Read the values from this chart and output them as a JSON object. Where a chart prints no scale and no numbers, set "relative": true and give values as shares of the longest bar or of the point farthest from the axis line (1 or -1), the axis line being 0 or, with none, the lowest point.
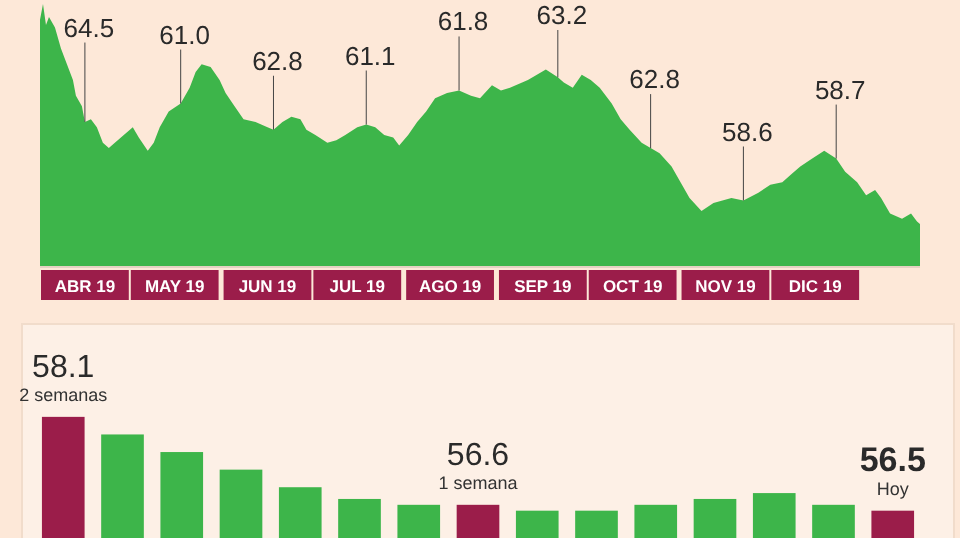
{
  "chart_data": [
    {
      "type": "area",
      "relative": true,
      "color": "#3db54a",
      "x": [
        "2019-04-01",
        "2019-04-02",
        "2019-04-03",
        "2019-04-04",
        "2019-04-06",
        "2019-04-08",
        "2019-04-10",
        "2019-04-12",
        "2019-04-13",
        "2019-04-15",
        "2019-04-16",
        "2019-04-18",
        "2019-04-20",
        "2019-04-22",
        "2019-04-24",
        "2019-04-26",
        "2019-04-29",
        "2019-05-02",
        "2019-05-04",
        "2019-05-07",
        "2019-05-09",
        "2019-05-11",
        "2019-05-14",
        "2019-05-18",
        "2019-05-21",
        "2019-05-23",
        "2019-05-25",
        "2019-05-28",
        "2019-05-31",
        "2019-06-02",
        "2019-06-05",
        "2019-06-08",
        "2019-06-12",
        "2019-06-16",
        "2019-06-18",
        "2019-06-21",
        "2019-06-24",
        "2019-06-27",
        "2019-06-29",
        "2019-07-02",
        "2019-07-06",
        "2019-07-09",
        "2019-07-12",
        "2019-07-16",
        "2019-07-19",
        "2019-07-22",
        "2019-07-25",
        "2019-07-28",
        "2019-07-30",
        "2019-08-02",
        "2019-08-05",
        "2019-08-08",
        "2019-08-11",
        "2019-08-15",
        "2019-08-19",
        "2019-08-23",
        "2019-08-26",
        "2019-08-30",
        "2019-09-02",
        "2019-09-05",
        "2019-09-11",
        "2019-09-17",
        "2019-09-21",
        "2019-09-23",
        "2019-09-26",
        "2019-09-29",
        "2019-10-02",
        "2019-10-05",
        "2019-10-09",
        "2019-10-12",
        "2019-10-15",
        "2019-10-19",
        "2019-10-22",
        "2019-10-25",
        "2019-10-29",
        "2019-11-01",
        "2019-11-04",
        "2019-11-08",
        "2019-11-12",
        "2019-11-18",
        "2019-11-22",
        "2019-11-27",
        "2019-12-01",
        "2019-12-05",
        "2019-12-08",
        "2019-12-11",
        "2019-12-15",
        "2019-12-19",
        "2019-12-23",
        "2019-12-26",
        "2019-12-30",
        "2020-01-02",
        "2020-01-05",
        "2020-01-07",
        "2020-01-10",
        "2020-01-14",
        "2020-01-17",
        "2020-01-19",
        "2020-01-20"
      ],
      "values": [
        0.94,
        1,
        0.92,
        0.95,
        0.91,
        0.83,
        0.77,
        0.71,
        0.65,
        0.61,
        0.55,
        0.56,
        0.53,
        0.47,
        0.45,
        0.47,
        0.5,
        0.53,
        0.49,
        0.44,
        0.47,
        0.53,
        0.59,
        0.62,
        0.68,
        0.74,
        0.77,
        0.76,
        0.71,
        0.66,
        0.61,
        0.56,
        0.55,
        0.53,
        0.52,
        0.55,
        0.57,
        0.56,
        0.52,
        0.5,
        0.47,
        0.48,
        0.5,
        0.53,
        0.54,
        0.53,
        0.5,
        0.49,
        0.46,
        0.5,
        0.55,
        0.59,
        0.64,
        0.66,
        0.67,
        0.65,
        0.64,
        0.69,
        0.67,
        0.68,
        0.71,
        0.75,
        0.72,
        0.7,
        0.68,
        0.73,
        0.71,
        0.68,
        0.62,
        0.56,
        0.52,
        0.47,
        0.45,
        0.43,
        0.38,
        0.32,
        0.26,
        0.21,
        0.24,
        0.26,
        0.25,
        0.28,
        0.31,
        0.32,
        0.35,
        0.38,
        0.41,
        0.44,
        0.41,
        0.36,
        0.32,
        0.27,
        0.29,
        0.26,
        0.2,
        0.18,
        0.2,
        0.17,
        0.16
      ],
      "xlim": [
        "2019-04-01",
        "2020-01-20"
      ],
      "xticks": [
        {
          "value": "2019-04-16",
          "label": "ABR 19"
        },
        {
          "value": "2019-05-16",
          "label": "MAY 19"
        },
        {
          "value": "2019-06-16",
          "label": "JUN 19"
        },
        {
          "value": "2019-07-16",
          "label": "JUL 19"
        },
        {
          "value": "2019-08-16",
          "label": "AGO 19"
        },
        {
          "value": "2019-09-16",
          "label": "SEP 19"
        },
        {
          "value": "2019-10-16",
          "label": "OCT 19"
        },
        {
          "value": "2019-11-16",
          "label": "NOV 19"
        },
        {
          "value": "2019-12-16",
          "label": "DIC 19"
        }
      ],
      "annotations": [
        {
          "text": "64.5",
          "x": "2019-04-16",
          "y": 0.55
        },
        {
          "text": "61.0",
          "x": "2019-05-18",
          "y": 0.62
        },
        {
          "text": "62.8",
          "x": "2019-06-18",
          "y": 0.52
        },
        {
          "text": "61.1",
          "x": "2019-07-19",
          "y": 0.54
        },
        {
          "text": "61.8",
          "x": "2019-08-19",
          "y": 0.67
        },
        {
          "text": "63.2",
          "x": "2019-09-21",
          "y": 0.72
        },
        {
          "text": "62.8",
          "x": "2019-10-22",
          "y": 0.45
        },
        {
          "text": "58.6",
          "x": "2019-11-22",
          "y": 0.25
        },
        {
          "text": "58.7",
          "x": "2019-12-23",
          "y": 0.41
        }
      ]
    },
    {
      "type": "bar",
      "categories": [
        null,
        null,
        null,
        null,
        null,
        null,
        null,
        null,
        null,
        null,
        null,
        null,
        null,
        null,
        null
      ],
      "values": [
        58.1,
        57.8,
        57.5,
        57.2,
        56.9,
        56.7,
        56.6,
        56.6,
        56.5,
        56.5,
        56.6,
        56.7,
        56.8,
        56.6,
        56.5
      ],
      "colors": [
        "#9b1d4a",
        "#3db54a",
        "#3db54a",
        "#3db54a",
        "#3db54a",
        "#3db54a",
        "#3db54a",
        "#9b1d4a",
        "#3db54a",
        "#3db54a",
        "#3db54a",
        "#3db54a",
        "#3db54a",
        "#3db54a",
        "#9b1d4a"
      ],
      "value_labels": [
        "58.1",
        null,
        null,
        null,
        null,
        null,
        null,
        "56.6",
        null,
        null,
        null,
        null,
        null,
        null,
        "56.5"
      ],
      "ylim": [
        56.0,
        58.2
      ],
      "annotations": [
        "2 semanas",
        "1 semana",
        "Hoy"
      ]
    }
  ]
}
